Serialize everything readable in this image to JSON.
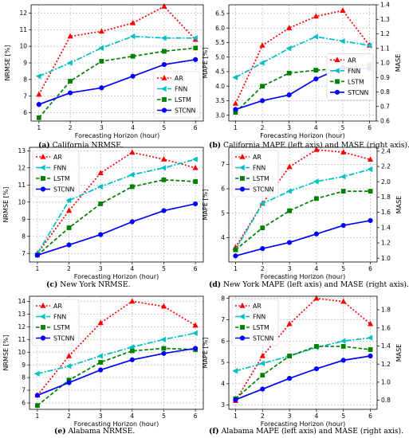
{
  "x_axis_label": "Forecasting Horizon (hour)",
  "colors": {
    "AR": "#ff0000",
    "FNN": "#00bfc4",
    "LSTM": "#008000",
    "STCNN": "#0000ff"
  },
  "chart_data": [
    {
      "type": "line",
      "caption_tag": "(a)",
      "caption_text": "California NRMSE.",
      "x": [
        1,
        2,
        3,
        4,
        5,
        6
      ],
      "xlabel": "Forecasting Horizon (hour)",
      "ylabel": "NRMSE [%]",
      "ylim": [
        5.5,
        12.5
      ],
      "yticks": [
        6,
        7,
        8,
        9,
        10,
        11,
        12
      ],
      "legend": "bottom-right",
      "grid": true,
      "series": [
        {
          "name": "AR",
          "values": [
            7.1,
            10.6,
            10.9,
            11.4,
            12.4,
            10.4
          ]
        },
        {
          "name": "FNN",
          "values": [
            8.2,
            9.0,
            9.9,
            10.6,
            10.5,
            10.5
          ]
        },
        {
          "name": "LSTM",
          "values": [
            5.7,
            7.9,
            9.1,
            9.4,
            9.7,
            9.9
          ]
        },
        {
          "name": "STCNN",
          "values": [
            6.5,
            7.2,
            7.5,
            8.2,
            8.9,
            9.2
          ]
        }
      ]
    },
    {
      "type": "line",
      "caption_tag": "(b)",
      "caption_text": "California MAPE (left axis) and MASE (right axis).",
      "x": [
        1,
        2,
        3,
        4,
        5,
        6
      ],
      "xlabel": "Forecasting Horizon (hour)",
      "ylabel": "MAPE [%]",
      "ylabel_right": "MASE",
      "ylim": [
        2.8,
        6.8
      ],
      "yticks": [
        3.0,
        3.5,
        4.0,
        4.5,
        5.0,
        5.5,
        6.0,
        6.5
      ],
      "ylim_right": [
        0.6,
        1.4
      ],
      "yticks_right": [
        0.6,
        0.7,
        0.8,
        0.9,
        1.0,
        1.1,
        1.2,
        1.3,
        1.4
      ],
      "legend": "right",
      "grid": true,
      "series": [
        {
          "name": "AR",
          "values": [
            3.4,
            5.4,
            6.0,
            6.4,
            6.6,
            5.4
          ]
        },
        {
          "name": "FNN",
          "values": [
            4.3,
            4.8,
            5.3,
            5.7,
            5.55,
            5.4
          ]
        },
        {
          "name": "LSTM",
          "values": [
            3.1,
            4.0,
            4.45,
            4.55,
            4.6,
            4.75
          ]
        },
        {
          "name": "STCNN",
          "values": [
            3.2,
            3.5,
            3.7,
            4.25,
            4.65,
            4.6
          ]
        }
      ]
    },
    {
      "type": "line",
      "caption_tag": "(c)",
      "caption_text": "New York NRMSE.",
      "x": [
        1,
        2,
        3,
        4,
        5,
        6
      ],
      "xlabel": "Forecasting Horizon (hour)",
      "ylabel": "NRMSE [%]",
      "ylim": [
        6.5,
        13.2
      ],
      "yticks": [
        7,
        8,
        9,
        10,
        11,
        12,
        13
      ],
      "legend": "top-left",
      "grid": true,
      "series": [
        {
          "name": "AR",
          "values": [
            7.0,
            9.5,
            11.7,
            12.9,
            12.5,
            12.0
          ]
        },
        {
          "name": "FNN",
          "values": [
            7.0,
            10.1,
            10.9,
            11.6,
            12.0,
            12.5
          ]
        },
        {
          "name": "LSTM",
          "values": [
            6.9,
            8.5,
            9.9,
            10.9,
            11.3,
            11.2
          ]
        },
        {
          "name": "STCNN",
          "values": [
            6.9,
            7.5,
            8.1,
            8.85,
            9.5,
            9.9
          ]
        }
      ]
    },
    {
      "type": "line",
      "caption_tag": "(d)",
      "caption_text": "New York MAPE (left axis) and MASE (right axis).",
      "x": [
        1,
        2,
        3,
        4,
        5,
        6
      ],
      "xlabel": "Forecasting Horizon (hour)",
      "ylabel": "MAPE [%]",
      "ylabel_right": "MASE",
      "ylim": [
        3.0,
        7.7
      ],
      "yticks": [
        4,
        5,
        6,
        7
      ],
      "ylim_right": [
        0.95,
        2.45
      ],
      "yticks_right": [
        1.0,
        1.2,
        1.4,
        1.6,
        1.8,
        2.0,
        2.2,
        2.4
      ],
      "legend": "top-left",
      "grid": true,
      "series": [
        {
          "name": "AR",
          "values": [
            3.6,
            5.4,
            6.9,
            7.6,
            7.5,
            7.2
          ]
        },
        {
          "name": "FNN",
          "values": [
            3.5,
            5.4,
            5.9,
            6.3,
            6.5,
            6.8
          ]
        },
        {
          "name": "LSTM",
          "values": [
            3.5,
            4.4,
            5.1,
            5.6,
            5.9,
            5.9
          ]
        },
        {
          "name": "STCNN",
          "values": [
            3.25,
            3.55,
            3.8,
            4.15,
            4.5,
            4.7
          ]
        }
      ]
    },
    {
      "type": "line",
      "caption_tag": "(e)",
      "caption_text": "Alabama NRMSE.",
      "x": [
        1,
        2,
        3,
        4,
        5,
        6
      ],
      "xlabel": "Forecasting Horizon (hour)",
      "ylabel": "NRMSE [%]",
      "ylim": [
        5.5,
        14.4
      ],
      "yticks": [
        6,
        7,
        8,
        9,
        10,
        11,
        12,
        13,
        14
      ],
      "legend": "top-left",
      "grid": true,
      "series": [
        {
          "name": "AR",
          "values": [
            6.6,
            9.7,
            12.3,
            14.0,
            13.6,
            12.1
          ]
        },
        {
          "name": "FNN",
          "values": [
            8.3,
            8.9,
            9.7,
            10.4,
            11.0,
            11.5
          ]
        },
        {
          "name": "LSTM",
          "values": [
            5.8,
            7.8,
            9.2,
            10.1,
            10.3,
            10.2
          ]
        },
        {
          "name": "STCNN",
          "values": [
            6.6,
            7.6,
            8.6,
            9.4,
            9.9,
            10.3
          ]
        }
      ]
    },
    {
      "type": "line",
      "caption_tag": "(f)",
      "caption_text": "Alabama MAPE (left axis) and MASE (right axis).",
      "x": [
        1,
        2,
        3,
        4,
        5,
        6
      ],
      "xlabel": "Forecasting Horizon (hour)",
      "ylabel": "MAPE [%]",
      "ylabel_right": "MASE",
      "ylim": [
        2.8,
        8.1
      ],
      "yticks": [
        3,
        4,
        5,
        6,
        7,
        8
      ],
      "ylim_right": [
        0.7,
        1.95
      ],
      "yticks_right": [
        0.8,
        1.0,
        1.2,
        1.4,
        1.6,
        1.8
      ],
      "legend": "top-left",
      "grid": true,
      "series": [
        {
          "name": "AR",
          "values": [
            3.2,
            5.3,
            6.8,
            8.0,
            7.85,
            6.8
          ]
        },
        {
          "name": "FNN",
          "values": [
            4.6,
            4.95,
            5.3,
            5.7,
            6.0,
            6.15
          ]
        },
        {
          "name": "LSTM",
          "values": [
            3.3,
            4.4,
            5.3,
            5.75,
            5.75,
            5.6
          ]
        },
        {
          "name": "STCNN",
          "values": [
            3.25,
            3.75,
            4.25,
            4.7,
            5.1,
            5.3
          ]
        }
      ]
    }
  ]
}
